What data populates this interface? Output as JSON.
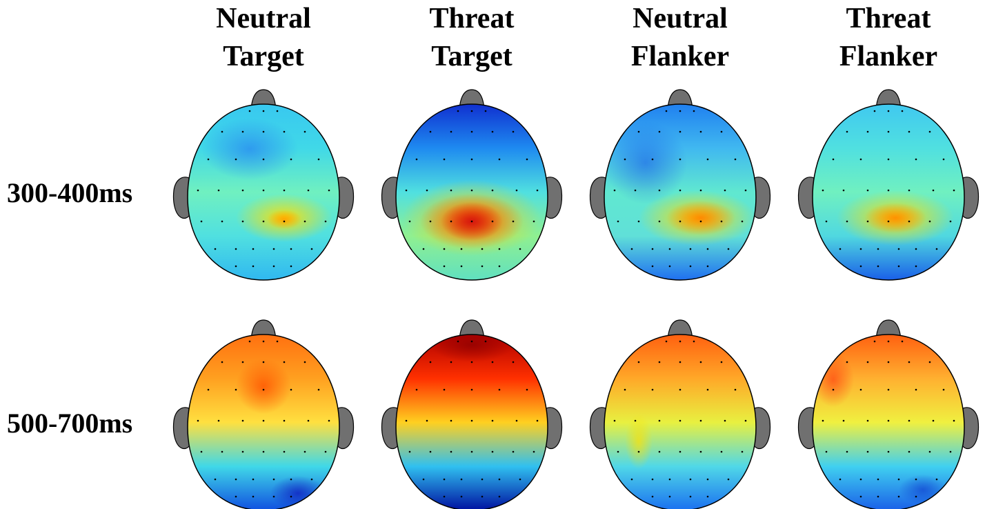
{
  "columns": [
    {
      "lines": [
        "Neutral",
        "Target"
      ]
    },
    {
      "lines": [
        "Threat",
        "Target"
      ]
    },
    {
      "lines": [
        "Neutral",
        "Flanker"
      ]
    },
    {
      "lines": [
        "Threat",
        "Flanker"
      ]
    }
  ],
  "rows": [
    "300-400ms",
    "500-700ms"
  ]
}
